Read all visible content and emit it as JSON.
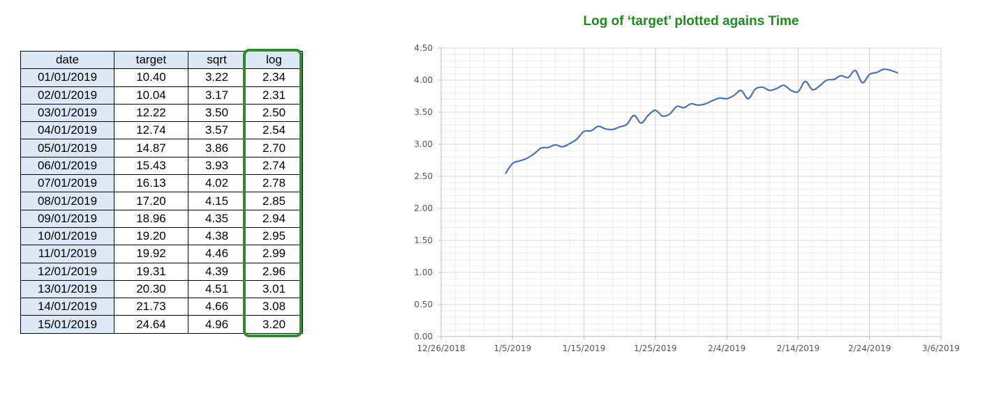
{
  "table": {
    "headers": [
      "date",
      "target",
      "sqrt",
      "log"
    ],
    "rows": [
      [
        "01/01/2019",
        "10.40",
        "3.22",
        "2.34"
      ],
      [
        "02/01/2019",
        "10.04",
        "3.17",
        "2.31"
      ],
      [
        "03/01/2019",
        "12.22",
        "3.50",
        "2.50"
      ],
      [
        "04/01/2019",
        "12.74",
        "3.57",
        "2.54"
      ],
      [
        "05/01/2019",
        "14.87",
        "3.86",
        "2.70"
      ],
      [
        "06/01/2019",
        "15.43",
        "3.93",
        "2.74"
      ],
      [
        "07/01/2019",
        "16.13",
        "4.02",
        "2.78"
      ],
      [
        "08/01/2019",
        "17.20",
        "4.15",
        "2.85"
      ],
      [
        "09/01/2019",
        "18.96",
        "4.35",
        "2.94"
      ],
      [
        "10/01/2019",
        "19.20",
        "4.38",
        "2.95"
      ],
      [
        "11/01/2019",
        "19.92",
        "4.46",
        "2.99"
      ],
      [
        "12/01/2019",
        "19.31",
        "4.39",
        "2.96"
      ],
      [
        "13/01/2019",
        "20.30",
        "4.51",
        "3.01"
      ],
      [
        "14/01/2019",
        "21.73",
        "4.66",
        "3.08"
      ],
      [
        "15/01/2019",
        "24.64",
        "4.96",
        "3.20"
      ]
    ],
    "highlight_color": "#2e8b2e"
  },
  "chart_data": {
    "type": "line",
    "title": "Log of ‘target’ plotted agains Time",
    "xlabel": "",
    "ylabel": "",
    "x_ticks": [
      "12/26/2018",
      "1/5/2019",
      "1/15/2019",
      "1/25/2019",
      "2/4/2019",
      "2/14/2019",
      "2/24/2019",
      "3/6/2019"
    ],
    "xlim": [
      "12/26/2018",
      "3/6/2019"
    ],
    "y_ticks": [
      "0.00",
      "0.50",
      "1.00",
      "1.50",
      "2.00",
      "2.50",
      "3.00",
      "3.50",
      "4.00",
      "4.50"
    ],
    "ylim": [
      0,
      4.5
    ],
    "grid": true,
    "series": [
      {
        "color": "#4a72b2",
        "x": [
          "1/4/2019",
          "1/5/2019",
          "1/6/2019",
          "1/7/2019",
          "1/8/2019",
          "1/9/2019",
          "1/10/2019",
          "1/11/2019",
          "1/12/2019",
          "1/13/2019",
          "1/14/2019",
          "1/15/2019",
          "1/16/2019",
          "1/17/2019",
          "1/18/2019",
          "1/19/2019",
          "1/20/2019",
          "1/21/2019",
          "1/22/2019",
          "1/23/2019",
          "1/24/2019",
          "1/25/2019",
          "1/26/2019",
          "1/27/2019",
          "1/28/2019",
          "1/29/2019",
          "1/30/2019",
          "1/31/2019",
          "2/1/2019",
          "2/2/2019",
          "2/3/2019",
          "2/4/2019",
          "2/5/2019",
          "2/6/2019",
          "2/7/2019",
          "2/8/2019",
          "2/9/2019",
          "2/10/2019",
          "2/11/2019",
          "2/12/2019",
          "2/13/2019",
          "2/14/2019",
          "2/15/2019",
          "2/16/2019",
          "2/17/2019",
          "2/18/2019",
          "2/19/2019",
          "2/20/2019",
          "2/21/2019",
          "2/22/2019",
          "2/23/2019",
          "2/24/2019",
          "2/25/2019",
          "2/26/2019",
          "2/27/2019",
          "2/28/2019"
        ],
        "y": [
          2.54,
          2.7,
          2.74,
          2.78,
          2.85,
          2.94,
          2.95,
          2.99,
          2.96,
          3.01,
          3.08,
          3.2,
          3.21,
          3.28,
          3.24,
          3.23,
          3.27,
          3.31,
          3.45,
          3.33,
          3.45,
          3.53,
          3.44,
          3.47,
          3.59,
          3.57,
          3.63,
          3.61,
          3.63,
          3.68,
          3.72,
          3.71,
          3.76,
          3.84,
          3.71,
          3.86,
          3.89,
          3.84,
          3.87,
          3.92,
          3.84,
          3.82,
          3.98,
          3.85,
          3.91,
          4.0,
          4.01,
          4.07,
          4.04,
          4.15,
          3.96,
          4.09,
          4.12,
          4.17,
          4.15,
          4.11
        ]
      }
    ]
  }
}
